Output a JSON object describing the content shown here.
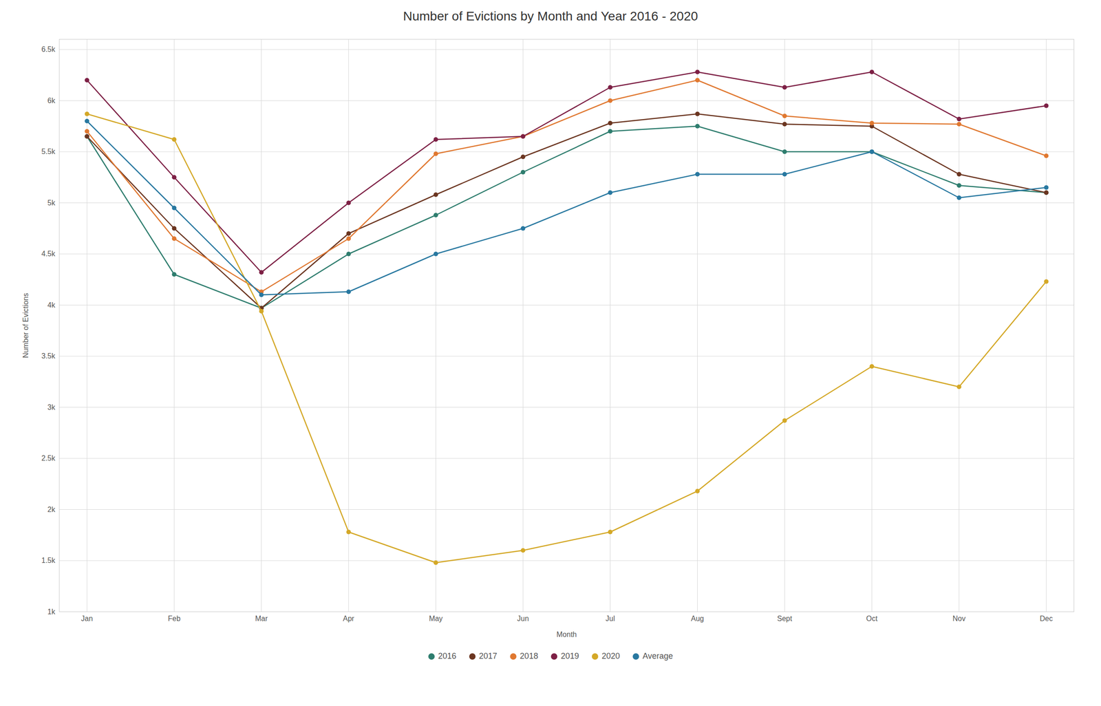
{
  "chart_data": {
    "type": "line",
    "title": "Number of Evictions by Month and Year 2016 - 2020",
    "xlabel": "Month",
    "ylabel": "Number of Evictions",
    "categories": [
      "Jan",
      "Feb",
      "Mar",
      "Apr",
      "May",
      "Jun",
      "Jul",
      "Aug",
      "Sept",
      "Oct",
      "Nov",
      "Dec"
    ],
    "series": [
      {
        "name": "2016",
        "color": "#2e7d6e",
        "values": [
          5650,
          4300,
          3970,
          4500,
          4880,
          5300,
          5700,
          5750,
          5500,
          5500,
          5170,
          5100
        ]
      },
      {
        "name": "2017",
        "color": "#6b3520",
        "values": [
          5650,
          4750,
          3970,
          4700,
          5080,
          5450,
          5780,
          5870,
          5770,
          5750,
          5280,
          5100
        ]
      },
      {
        "name": "2018",
        "color": "#e07830",
        "values": [
          5700,
          4650,
          4130,
          4650,
          5480,
          5650,
          6000,
          6200,
          5850,
          5780,
          5770,
          5460
        ]
      },
      {
        "name": "2019",
        "color": "#7d2045",
        "values": [
          6200,
          5250,
          4320,
          5000,
          5620,
          5650,
          6130,
          6280,
          6130,
          6280,
          5820,
          5950
        ]
      },
      {
        "name": "2020",
        "color": "#d4a827",
        "values": [
          5870,
          5620,
          3940,
          1780,
          1480,
          1600,
          1780,
          2180,
          2870,
          3400,
          3200,
          4230
        ]
      },
      {
        "name": "Average",
        "color": "#2878a0",
        "values": [
          5800,
          4950,
          4100,
          4130,
          4500,
          4750,
          5100,
          5280,
          5280,
          5500,
          5050,
          5150
        ]
      }
    ],
    "ylim": [
      1000,
      6600
    ],
    "yticks": [
      {
        "value": 1000,
        "label": "1k"
      },
      {
        "value": 1500,
        "label": "1.5k"
      },
      {
        "value": 2000,
        "label": "2k"
      },
      {
        "value": 2500,
        "label": "2.5k"
      },
      {
        "value": 3000,
        "label": "3k"
      },
      {
        "value": 3500,
        "label": "3.5k"
      },
      {
        "value": 4000,
        "label": "4k"
      },
      {
        "value": 4500,
        "label": "4.5k"
      },
      {
        "value": 5000,
        "label": "5k"
      },
      {
        "value": 5500,
        "label": "5.5k"
      },
      {
        "value": 6000,
        "label": "6k"
      },
      {
        "value": 6500,
        "label": "6.5k"
      }
    ],
    "grid": true,
    "legend": "bottom",
    "marker": "circle"
  }
}
